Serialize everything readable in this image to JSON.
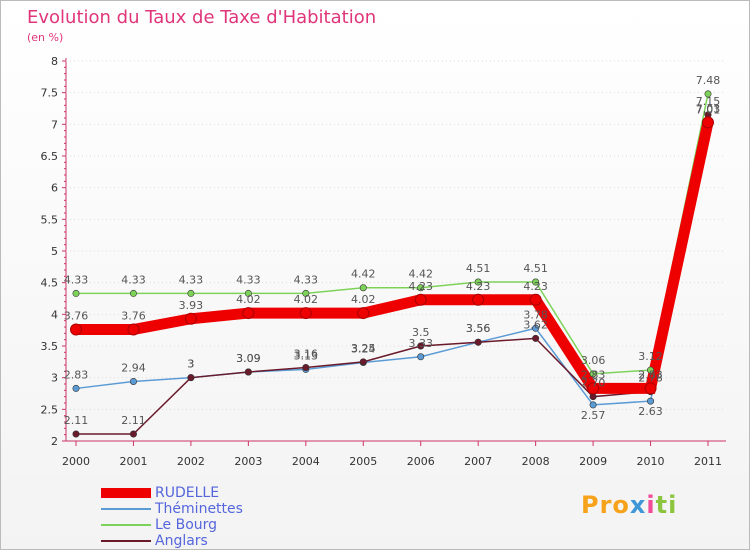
{
  "chart_data": {
    "type": "line",
    "title": "Evolution du Taux de Taxe d'Habitation",
    "ylabel": "(en %)",
    "xlabel": "",
    "categories": [
      "2000",
      "2001",
      "2002",
      "2003",
      "2004",
      "2005",
      "2006",
      "2007",
      "2008",
      "2009",
      "2010",
      "2011"
    ],
    "ylim": [
      2,
      8
    ],
    "yticks": [
      2,
      2.5,
      3,
      3.5,
      4,
      4.5,
      5,
      5.5,
      6,
      6.5,
      7,
      7.5,
      8
    ],
    "ytick_labels": [
      "2",
      "2.5",
      "3",
      "3.5",
      "4",
      "4.5",
      "5",
      "5.5",
      "6",
      "6.5",
      "7",
      "7.5",
      "8"
    ],
    "series": [
      {
        "name": "Le Bourg",
        "color": "#7dd35a",
        "values": [
          4.33,
          4.33,
          4.33,
          4.33,
          4.33,
          4.42,
          4.42,
          4.51,
          4.51,
          3.06,
          3.12,
          7.48
        ],
        "labels": [
          "4.33",
          "4.33",
          "4.33",
          "4.33",
          "4.33",
          "4.42",
          "4.42",
          "4.51",
          "4.51",
          "3.06",
          "3.12",
          "7.48"
        ]
      },
      {
        "name": "Théminettes",
        "color": "#5b9bd5",
        "values": [
          2.83,
          2.94,
          3.0,
          3.09,
          3.13,
          3.24,
          3.33,
          3.56,
          3.78,
          2.57,
          2.63,
          7.01
        ],
        "labels": [
          "2.83",
          "2.94",
          "3",
          "3.09",
          "3.13",
          "3.24",
          "3.33",
          "3.56",
          "3.78",
          "2.57",
          "2.63",
          "7.01"
        ]
      },
      {
        "name": "Anglars",
        "color": "#6a1a2a",
        "values": [
          2.11,
          2.11,
          3.0,
          3.09,
          3.16,
          3.25,
          3.5,
          3.56,
          3.62,
          2.7,
          2.78,
          7.15
        ],
        "labels": [
          "2.11",
          "2.11",
          "3",
          "3.09",
          "3.16",
          "3.25",
          "3.5",
          "3.56",
          "3.62",
          "2.70",
          "2.78",
          "7.15"
        ]
      },
      {
        "name": "RUDELLE",
        "color": "#ee0000",
        "values": [
          3.76,
          3.76,
          3.93,
          4.02,
          4.02,
          4.02,
          4.23,
          4.23,
          4.23,
          2.83,
          2.83,
          7.03
        ],
        "labels": [
          "3.76",
          "3.76",
          "3.93",
          "4.02",
          "4.02",
          "4.02",
          "4.23",
          "4.23",
          "4.23",
          "2.83",
          "2.83",
          "7.03"
        ]
      }
    ],
    "legend": [
      "RUDELLE",
      "Théminettes",
      "Le Bourg",
      "Anglars"
    ],
    "legend_position": "bottom-left"
  },
  "logo": {
    "p1": "Pro",
    "p2": "x",
    "p3": "i",
    "p4": "ti"
  }
}
